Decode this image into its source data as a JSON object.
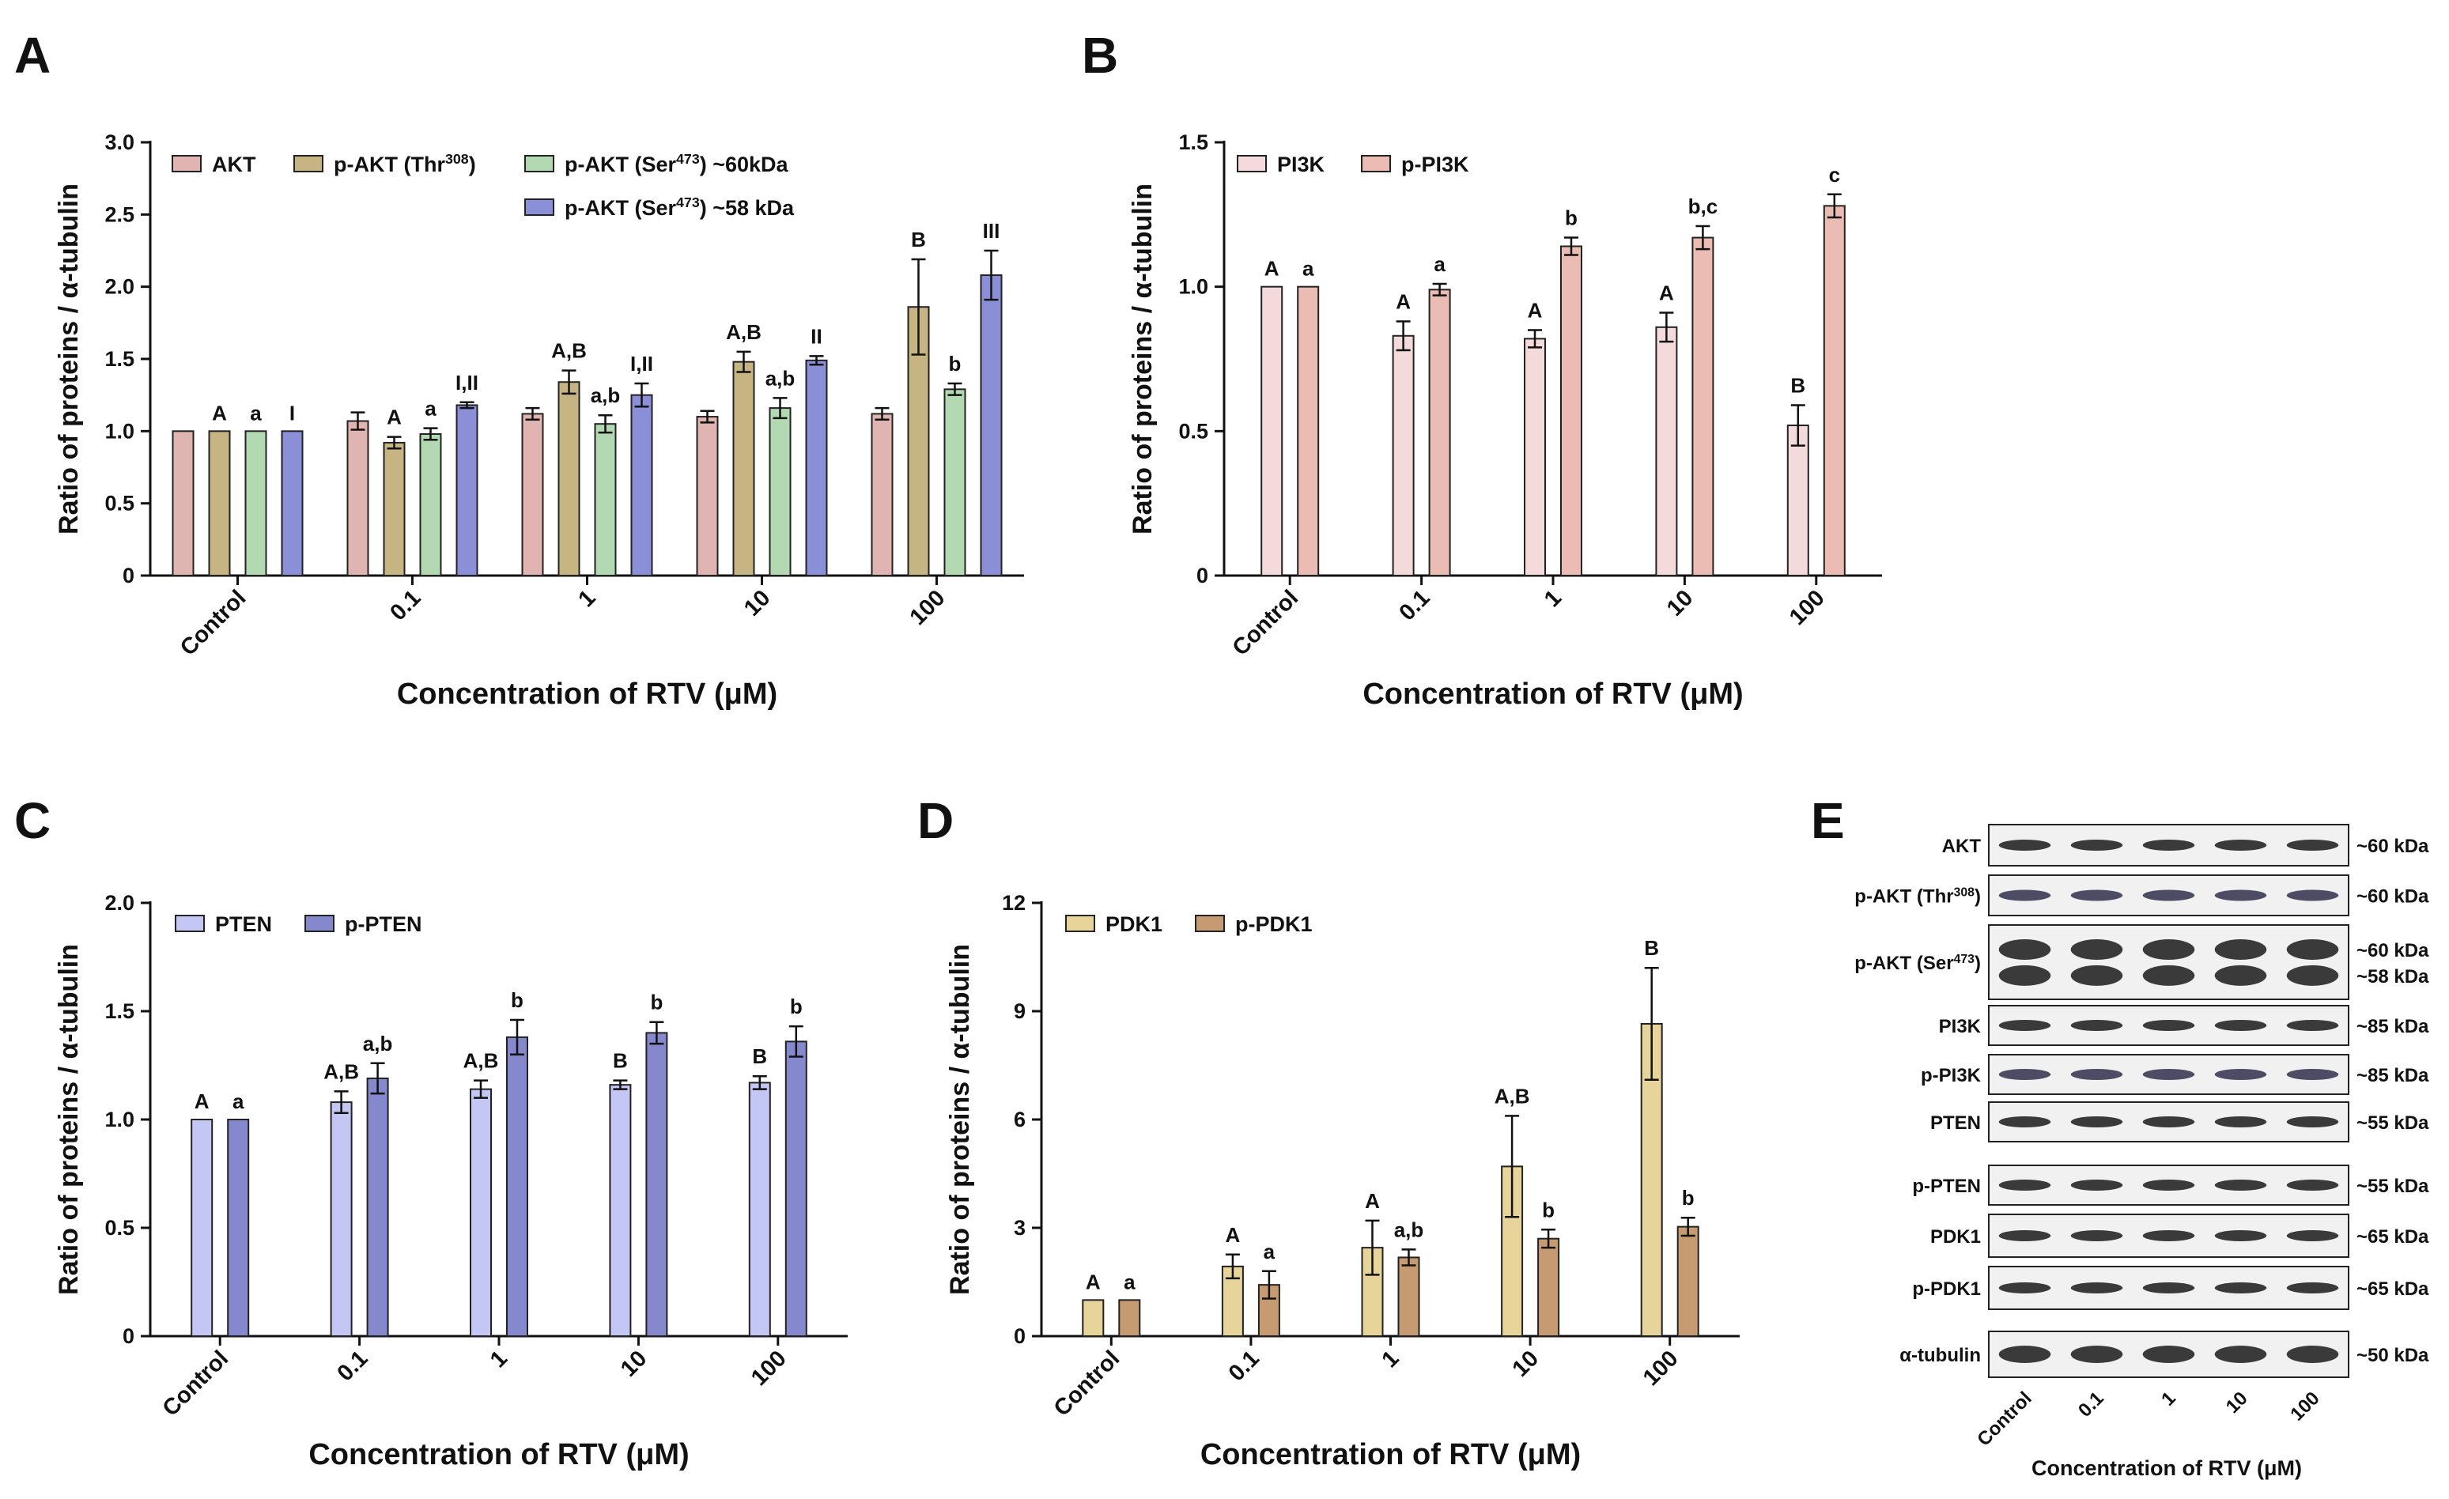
{
  "panel_labels": [
    "A",
    "B",
    "C",
    "D",
    "E"
  ],
  "chart_data": [
    {
      "id": "A",
      "type": "bar",
      "ylabel": "Ratio of proteins / α-tubulin",
      "xlabel": "Concentration of RTV (μM)",
      "ylim": [
        0,
        3.0
      ],
      "yticks": [
        "0",
        "0.5",
        "1.0",
        "1.5",
        "2.0",
        "2.5",
        "3.0"
      ],
      "categories": [
        "Control",
        "0.1",
        "1",
        "10",
        "100"
      ],
      "series": [
        {
          "name": "AKT",
          "legend": {
            "pre": "AKT",
            "sup": "",
            "post": ""
          },
          "color": "#e0b4b0",
          "values": [
            1.0,
            1.07,
            1.12,
            1.1,
            1.12
          ],
          "errors": [
            0,
            0.06,
            0.04,
            0.04,
            0.04
          ],
          "labels": [
            "",
            "",
            "",
            "",
            ""
          ]
        },
        {
          "name": "p-AKT (Thr308)",
          "legend": {
            "pre": "p-AKT (Thr",
            "sup": "308",
            "post": ")"
          },
          "color": "#c6b483",
          "values": [
            1.0,
            0.92,
            1.34,
            1.48,
            1.86
          ],
          "errors": [
            0,
            0.04,
            0.08,
            0.07,
            0.33
          ],
          "labels": [
            "A",
            "A",
            "A,B",
            "A,B",
            "B"
          ]
        },
        {
          "name": "p-AKT (Ser473) ~60kDa",
          "legend": {
            "pre": "p-AKT (Ser",
            "sup": "473",
            "post": ") ~60kDa"
          },
          "color": "#b3d9b3",
          "values": [
            1.0,
            0.98,
            1.05,
            1.16,
            1.29
          ],
          "errors": [
            0,
            0.04,
            0.06,
            0.07,
            0.04
          ],
          "labels": [
            "a",
            "a",
            "a,b",
            "a,b",
            "b"
          ]
        },
        {
          "name": "p-AKT (Ser473) ~58 kDa",
          "legend": {
            "pre": "p-AKT (Ser",
            "sup": "473",
            "post": ") ~58 kDa"
          },
          "color": "#8b8fd8",
          "values": [
            1.0,
            1.18,
            1.25,
            1.49,
            2.08
          ],
          "errors": [
            0,
            0.02,
            0.08,
            0.03,
            0.17
          ],
          "labels": [
            "I",
            "I,II",
            "I,II",
            "II",
            "III"
          ]
        }
      ]
    },
    {
      "id": "B",
      "type": "bar",
      "ylabel": "Ratio of proteins / α-tubulin",
      "xlabel": "Concentration of RTV (μM)",
      "ylim": [
        0,
        1.5
      ],
      "yticks": [
        "0",
        "0.5",
        "1.0",
        "1.5"
      ],
      "categories": [
        "Control",
        "0.1",
        "1",
        "10",
        "100"
      ],
      "series": [
        {
          "name": "PI3K",
          "legend": {
            "pre": "PI3K",
            "sup": "",
            "post": ""
          },
          "color": "#f4dada",
          "values": [
            1.0,
            0.83,
            0.82,
            0.86,
            0.52
          ],
          "errors": [
            0,
            0.05,
            0.03,
            0.05,
            0.07
          ],
          "labels": [
            "A",
            "A",
            "A",
            "A",
            "B"
          ]
        },
        {
          "name": "p-PI3K",
          "legend": {
            "pre": "p-PI3K",
            "sup": "",
            "post": ""
          },
          "color": "#ebbcb4",
          "values": [
            1.0,
            0.99,
            1.14,
            1.17,
            1.28
          ],
          "errors": [
            0,
            0.02,
            0.03,
            0.04,
            0.04
          ],
          "labels": [
            "a",
            "a",
            "b",
            "b,c",
            "c"
          ]
        }
      ]
    },
    {
      "id": "C",
      "type": "bar",
      "ylabel": "Ratio of proteins / α-tubulin",
      "xlabel": "Concentration of RTV (μM)",
      "ylim": [
        0,
        2.0
      ],
      "yticks": [
        "0",
        "0.5",
        "1.0",
        "1.5",
        "2.0"
      ],
      "categories": [
        "Control",
        "0.1",
        "1",
        "10",
        "100"
      ],
      "series": [
        {
          "name": "PTEN",
          "legend": {
            "pre": "PTEN",
            "sup": "",
            "post": ""
          },
          "color": "#c4c6f4",
          "values": [
            1.0,
            1.08,
            1.14,
            1.16,
            1.17
          ],
          "errors": [
            0,
            0.05,
            0.04,
            0.02,
            0.03
          ],
          "labels": [
            "A",
            "A,B",
            "A,B",
            "B",
            "B"
          ]
        },
        {
          "name": "p-PTEN",
          "legend": {
            "pre": "p-PTEN",
            "sup": "",
            "post": ""
          },
          "color": "#8588cc",
          "values": [
            1.0,
            1.19,
            1.38,
            1.4,
            1.36
          ],
          "errors": [
            0,
            0.07,
            0.08,
            0.05,
            0.07
          ],
          "labels": [
            "a",
            "a,b",
            "b",
            "b",
            "b"
          ]
        }
      ]
    },
    {
      "id": "D",
      "type": "bar",
      "ylabel": "Ratio of proteins / α-tubulin",
      "xlabel": "Concentration of RTV (μM)",
      "ylim": [
        0,
        12
      ],
      "yticks": [
        "0",
        "3",
        "6",
        "9",
        "12"
      ],
      "categories": [
        "Control",
        "0.1",
        "1",
        "10",
        "100"
      ],
      "series": [
        {
          "name": "PDK1",
          "legend": {
            "pre": "PDK1",
            "sup": "",
            "post": ""
          },
          "color": "#e6d49a",
          "values": [
            1.0,
            1.93,
            2.45,
            4.7,
            8.65
          ],
          "errors": [
            0,
            0.33,
            0.75,
            1.4,
            1.55
          ],
          "labels": [
            "A",
            "A",
            "A",
            "A,B",
            "B"
          ]
        },
        {
          "name": "p-PDK1",
          "legend": {
            "pre": "p-PDK1",
            "sup": "",
            "post": ""
          },
          "color": "#c79b72",
          "values": [
            1.0,
            1.42,
            2.18,
            2.7,
            3.03
          ],
          "errors": [
            0,
            0.38,
            0.22,
            0.25,
            0.25
          ],
          "labels": [
            "a",
            "a",
            "a,b",
            "b",
            "b"
          ]
        }
      ]
    }
  ],
  "blots": {
    "rows": [
      {
        "pre": "AKT",
        "sup": "",
        "post": "",
        "kda": [
          "~60 kDa"
        ]
      },
      {
        "pre": "p-AKT (Thr",
        "sup": "308",
        "post": ")",
        "kda": [
          "~60 kDa"
        ]
      },
      {
        "pre": "p-AKT (Ser",
        "sup": "473",
        "post": ")",
        "kda": [
          "~60 kDa",
          "~58 kDa"
        ]
      },
      {
        "pre": "PI3K",
        "sup": "",
        "post": "",
        "kda": [
          "~85 kDa"
        ]
      },
      {
        "pre": "p-PI3K",
        "sup": "",
        "post": "",
        "kda": [
          "~85 kDa"
        ]
      },
      {
        "pre": "PTEN",
        "sup": "",
        "post": "",
        "kda": [
          "~55 kDa"
        ]
      },
      {
        "pre": "p-PTEN",
        "sup": "",
        "post": "",
        "kda": [
          "~55 kDa"
        ]
      },
      {
        "pre": "PDK1",
        "sup": "",
        "post": "",
        "kda": [
          "~65 kDa"
        ]
      },
      {
        "pre": "p-PDK1",
        "sup": "",
        "post": "",
        "kda": [
          "~65 kDa"
        ]
      },
      {
        "pre": "α-tubulin",
        "sup": "",
        "post": "",
        "kda": [
          "~50 kDa"
        ]
      }
    ],
    "lanes": [
      "Control",
      "0.1",
      "1",
      "10",
      "100"
    ],
    "xlabel": "Concentration of RTV (μM)"
  }
}
